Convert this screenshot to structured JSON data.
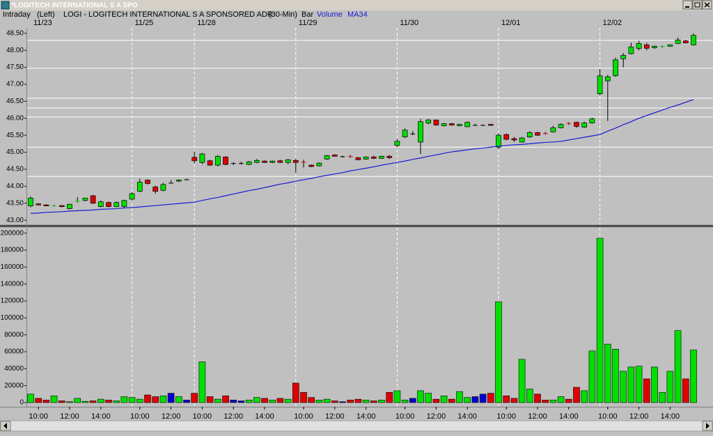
{
  "window": {
    "title": "*LOGITECH INTERNATIONAL S A SPO"
  },
  "chart_data": {
    "type": "candlestick",
    "header": {
      "mode": "Intraday",
      "scale": "(Left)",
      "symbol": "LOGI - LOGITECH INTERNATIONAL S A SPONSORED ADR",
      "interval": "(30-Min)",
      "style": "Bar"
    },
    "categories": [
      null,
      "10:00",
      null,
      null,
      null,
      "12:00",
      null,
      null,
      null,
      "14:00",
      null,
      null,
      null,
      null,
      "10:00",
      null,
      null,
      null,
      "12:00",
      null,
      null,
      null,
      "10:00",
      null,
      null,
      null,
      "12:00",
      null,
      null,
      null,
      "14:00",
      null,
      null,
      null,
      null,
      "10:00",
      null,
      null,
      null,
      "12:00",
      null,
      null,
      null,
      "14:00",
      null,
      null,
      null,
      null,
      "10:00",
      null,
      null,
      null,
      "12:00",
      null,
      null,
      null,
      "14:00",
      null,
      null,
      null,
      null,
      "10:00",
      null,
      null,
      null,
      "12:00",
      null,
      null,
      null,
      "14:00",
      null,
      null,
      null,
      null,
      "10:00",
      null,
      null,
      null,
      "12:00",
      null,
      null,
      null,
      "14:00",
      null,
      null,
      null
    ],
    "date_labels": [
      "11/23",
      null,
      null,
      null,
      null,
      null,
      null,
      null,
      null,
      null,
      null,
      null,
      null,
      "11/25",
      null,
      null,
      null,
      null,
      null,
      null,
      null,
      "11/28",
      null,
      null,
      null,
      null,
      null,
      null,
      null,
      null,
      null,
      null,
      null,
      null,
      "11/29",
      null,
      null,
      null,
      null,
      null,
      null,
      null,
      null,
      null,
      null,
      null,
      null,
      "11/30",
      null,
      null,
      null,
      null,
      null,
      null,
      null,
      null,
      null,
      null,
      null,
      null,
      "12/01",
      null,
      null,
      null,
      null,
      null,
      null,
      null,
      null,
      null,
      null,
      null,
      null,
      "12/02",
      null,
      null,
      null,
      null,
      null,
      null,
      null,
      null,
      null,
      null,
      null,
      null
    ],
    "open": [
      43.42,
      43.48,
      43.45,
      43.42,
      43.43,
      43.34,
      43.55,
      43.58,
      43.72,
      43.4,
      43.52,
      43.4,
      43.4,
      43.62,
      43.85,
      44.18,
      43.98,
      43.88,
      44.1,
      44.15,
      44.2,
      44.85,
      44.7,
      44.75,
      44.62,
      44.86,
      44.68,
      44.68,
      44.64,
      44.7,
      44.74,
      44.7,
      44.75,
      44.7,
      44.76,
      44.72,
      44.62,
      44.6,
      44.8,
      44.92,
      44.88,
      44.88,
      44.84,
      44.8,
      44.86,
      44.82,
      44.88,
      45.2,
      45.45,
      45.55,
      45.3,
      45.86,
      45.95,
      45.78,
      45.84,
      45.78,
      45.75,
      45.8,
      45.8,
      45.82,
      45.15,
      45.52,
      45.4,
      45.3,
      45.45,
      45.58,
      45.56,
      45.6,
      45.72,
      45.86,
      45.88,
      45.74,
      45.86,
      46.72,
      47.1,
      47.25,
      47.75,
      47.9,
      48.05,
      48.16,
      48.08,
      48.1,
      48.12,
      48.2,
      48.28,
      48.16
    ],
    "high": [
      43.7,
      43.5,
      43.47,
      43.45,
      43.44,
      43.48,
      43.68,
      43.66,
      43.74,
      43.58,
      43.55,
      43.55,
      43.6,
      43.82,
      44.22,
      44.2,
      44.02,
      44.1,
      44.18,
      44.2,
      44.22,
      45.02,
      44.98,
      44.78,
      44.92,
      44.88,
      44.7,
      44.72,
      44.74,
      44.8,
      44.76,
      44.76,
      44.78,
      44.8,
      44.8,
      44.78,
      44.64,
      44.7,
      44.92,
      44.94,
      44.9,
      44.92,
      44.86,
      44.88,
      44.9,
      44.9,
      44.92,
      45.38,
      45.7,
      45.62,
      45.98,
      45.98,
      45.96,
      45.86,
      45.86,
      45.84,
      45.9,
      45.84,
      45.82,
      45.84,
      45.55,
      45.55,
      45.45,
      45.45,
      45.62,
      45.6,
      45.6,
      45.78,
      45.85,
      45.88,
      45.9,
      45.9,
      46.02,
      47.45,
      47.28,
      47.78,
      47.92,
      48.22,
      48.28,
      48.22,
      48.14,
      48.14,
      48.18,
      48.38,
      48.3,
      48.5
    ],
    "low": [
      43.38,
      43.44,
      43.41,
      43.4,
      43.38,
      43.32,
      43.52,
      43.55,
      43.48,
      43.38,
      43.38,
      43.38,
      43.36,
      43.58,
      43.82,
      44.05,
      43.78,
      43.85,
      44.08,
      44.12,
      44.18,
      44.68,
      44.65,
      44.6,
      44.58,
      44.62,
      44.62,
      44.64,
      44.62,
      44.68,
      44.68,
      44.68,
      44.68,
      44.65,
      44.4,
      44.55,
      44.56,
      44.58,
      44.78,
      44.88,
      44.84,
      44.84,
      44.76,
      44.78,
      44.8,
      44.8,
      44.8,
      45.15,
      45.42,
      45.5,
      44.95,
      45.82,
      45.78,
      45.76,
      45.78,
      45.76,
      45.74,
      45.78,
      45.78,
      45.78,
      45.1,
      45.35,
      45.3,
      45.28,
      45.42,
      45.48,
      45.52,
      45.58,
      45.7,
      45.8,
      45.72,
      45.72,
      45.84,
      46.68,
      45.92,
      47.22,
      47.5,
      47.88,
      48.0,
      48.0,
      48.04,
      48.08,
      48.1,
      48.18,
      48.2,
      48.14
    ],
    "close": [
      43.65,
      43.45,
      43.42,
      43.43,
      43.4,
      43.47,
      43.57,
      43.65,
      43.5,
      43.54,
      43.4,
      43.52,
      43.58,
      43.78,
      44.12,
      44.08,
      43.85,
      44.05,
      44.1,
      44.18,
      44.2,
      44.75,
      44.95,
      44.62,
      44.88,
      44.64,
      44.68,
      44.68,
      44.72,
      44.76,
      44.7,
      44.74,
      44.7,
      44.78,
      44.7,
      44.7,
      44.58,
      44.68,
      44.9,
      44.88,
      44.88,
      44.86,
      44.78,
      44.86,
      44.82,
      44.88,
      44.84,
      45.32,
      45.65,
      45.55,
      45.9,
      45.95,
      45.8,
      45.84,
      45.8,
      45.82,
      45.88,
      45.8,
      45.8,
      45.79,
      45.5,
      45.38,
      45.36,
      45.42,
      45.58,
      45.5,
      45.54,
      45.72,
      45.82,
      45.84,
      45.76,
      45.86,
      45.98,
      47.25,
      47.22,
      47.72,
      47.85,
      48.1,
      48.2,
      48.06,
      48.12,
      48.12,
      48.16,
      48.3,
      48.22,
      48.44
    ],
    "up_color": "#00e000",
    "down_color": "#e00000",
    "doji_color": "#000000",
    "ylim": [
      42.88,
      48.66
    ],
    "yticks": [
      {
        "value": 43,
        "label": "43.00"
      },
      {
        "value": 43.5,
        "label": "43.50"
      },
      {
        "value": 44,
        "label": "44.00"
      },
      {
        "value": 44.5,
        "label": "44.50"
      },
      {
        "value": 45,
        "label": "45.00"
      },
      {
        "value": 45.5,
        "label": "45.50"
      },
      {
        "value": 46,
        "label": "46.00"
      },
      {
        "value": 46.5,
        "label": "46.50"
      },
      {
        "value": 47,
        "label": "47.00"
      },
      {
        "value": 47.5,
        "label": "47.50"
      },
      {
        "value": 48,
        "label": "48.00"
      },
      {
        "value": 48.5,
        "label": "48.50"
      }
    ],
    "horizontal_lines": [
      48.29,
      47.47,
      46.59,
      46.3,
      46.04,
      45.15,
      44.29
    ],
    "hline_color": "#ffffff",
    "series": [
      {
        "name": "MA34",
        "color": "#1a1ad0",
        "values": [
          43.2,
          43.21,
          43.23,
          43.24,
          43.25,
          43.27,
          43.28,
          43.29,
          43.3,
          43.32,
          43.33,
          43.34,
          43.36,
          43.37,
          43.39,
          43.41,
          43.43,
          43.45,
          43.47,
          43.49,
          43.51,
          43.53,
          43.58,
          43.63,
          43.67,
          43.72,
          43.77,
          43.82,
          43.87,
          43.91,
          43.96,
          44.01,
          44.06,
          44.1,
          44.15,
          44.19,
          44.23,
          44.28,
          44.32,
          44.36,
          44.4,
          44.45,
          44.49,
          44.53,
          44.57,
          44.62,
          44.66,
          44.7,
          44.74,
          44.79,
          44.83,
          44.88,
          44.92,
          44.97,
          45.01,
          45.04,
          45.07,
          45.1,
          45.12,
          45.15,
          45.18,
          45.2,
          45.22,
          45.23,
          45.25,
          45.27,
          45.29,
          45.3,
          45.32,
          45.36,
          45.4,
          45.44,
          45.48,
          45.52,
          45.62,
          45.71,
          45.81,
          45.9,
          46.0,
          46.08,
          46.16,
          46.24,
          46.32,
          46.39,
          46.47,
          46.55
        ]
      }
    ],
    "volume": {
      "name": "Volume",
      "up_color": "#00e000",
      "down_color": "#e00000",
      "flat_color": "#0000d0",
      "values": [
        10000,
        5000,
        3000,
        8000,
        2000,
        1000,
        5000,
        1500,
        2000,
        4000,
        3000,
        2000,
        7000,
        6000,
        4000,
        9000,
        7000,
        8000,
        11000,
        7000,
        3000,
        11000,
        48000,
        7000,
        4000,
        8000,
        3000,
        2000,
        3000,
        6000,
        5000,
        3000,
        5000,
        4000,
        23000,
        12000,
        6000,
        3000,
        4000,
        2000,
        1000,
        3000,
        4000,
        3000,
        2000,
        3000,
        12000,
        14000,
        3000,
        5000,
        14000,
        11000,
        4000,
        8000,
        4000,
        13000,
        6000,
        7000,
        10000,
        11000,
        119000,
        8000,
        5000,
        51000,
        16000,
        10000,
        3000,
        3000,
        7000,
        4000,
        18000,
        14000,
        61000,
        194000,
        69000,
        63000,
        37000,
        42000,
        43000,
        28000,
        42000,
        12000,
        37000,
        85000,
        28000,
        62000
      ],
      "ylim": [
        0,
        208000
      ],
      "yticks": [
        0,
        20000,
        40000,
        60000,
        80000,
        100000,
        120000,
        140000,
        160000,
        180000,
        200000
      ]
    }
  }
}
